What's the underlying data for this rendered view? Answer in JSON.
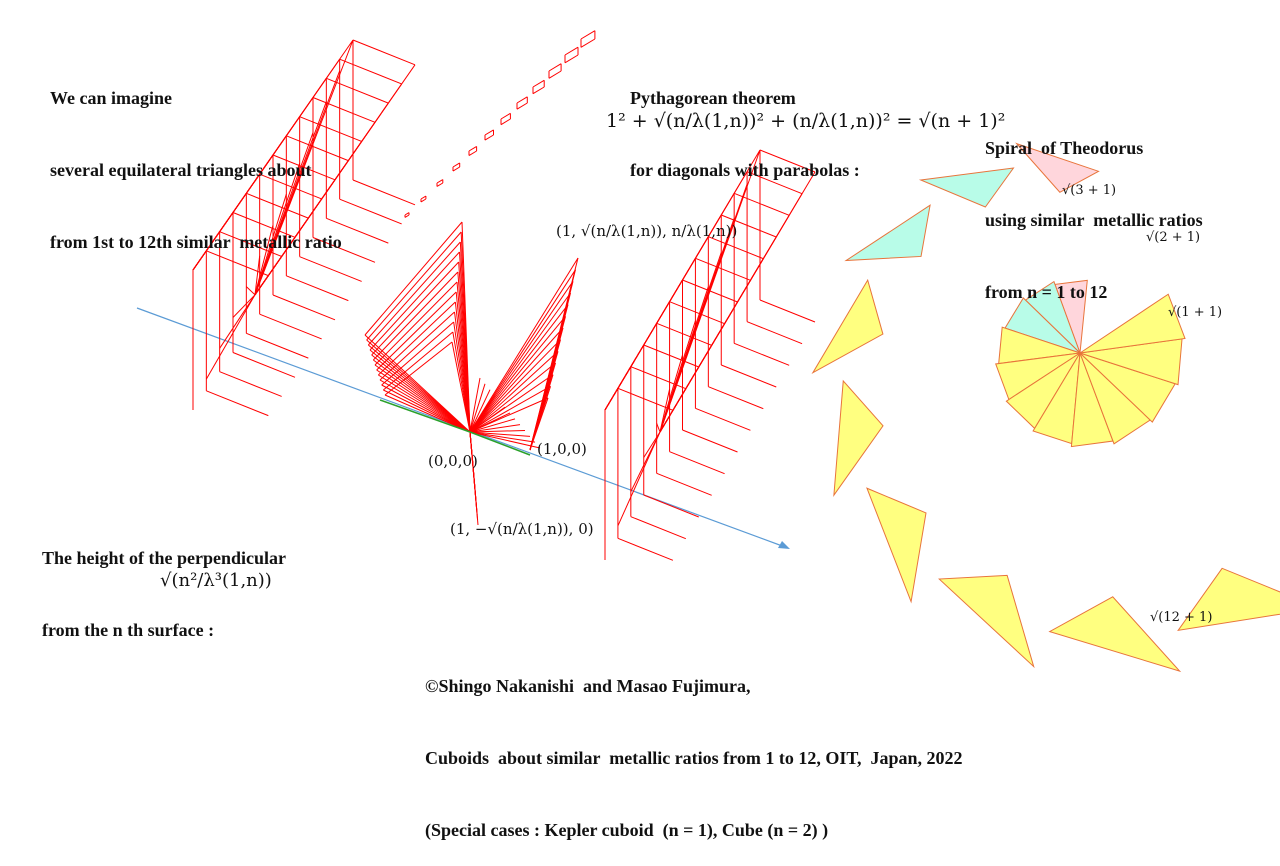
{
  "intro": {
    "lines": [
      "We can imagine",
      "several equilateral triangles about",
      "from 1st to 12th similar  metallic ratio"
    ]
  },
  "pythagorean": {
    "lines": [
      "Pythagorean theorem",
      "for diagonals with parabolas :"
    ],
    "formula": "1² + √(n/λ(1,n))² + (n/λ(1,n))² = √(n + 1)²"
  },
  "spiral": {
    "lines": [
      "Spiral  of Theodorus",
      "using similar  metallic ratios",
      "from n = 1 to 12"
    ],
    "labels": [
      "√(3 + 1)",
      "√(2 + 1)",
      "√(1 + 1)",
      "√(12 + 1)"
    ]
  },
  "points": {
    "origin": "(0,0,0)",
    "unit_x": "(1,0,0)",
    "top": "(1, √(n/λ(1,n)), n/λ(1,n))",
    "bottom": "(1, −√(n/λ(1,n)), 0)"
  },
  "height": {
    "lines": [
      "The height of the perpendicular",
      "from the n th surface :"
    ],
    "formula": "√(n²/λ³(1,n))"
  },
  "credits": {
    "lines": [
      "©Shingo Nakanishi  and Masao Fujimura,",
      "Cuboids  about similar  metallic ratios from 1 to 12, OIT,  Japan, 2022",
      "(Special cases : Kepler cuboid  (n = 1), Cube (n = 2) )"
    ]
  },
  "colors": {
    "wire": "#ff0000",
    "parabola": "#2aa02a",
    "axis": "#5b9bd5",
    "triangle_fill": "#ffff80",
    "triangle_stroke": "#e8743b",
    "pink": "#ffd6dc",
    "cyan": "#b8fce8"
  }
}
